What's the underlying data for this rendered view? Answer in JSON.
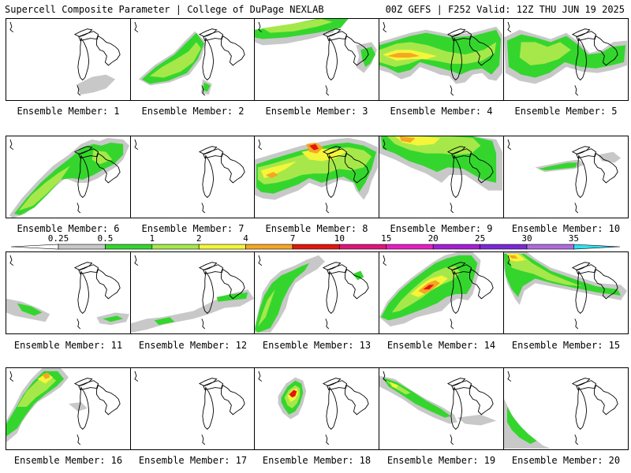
{
  "header": {
    "left_title": "Supercell Composite Parameter | College of DuPage NEXLAB",
    "right_title": "00Z GEFS | F252 Valid: 12Z THU JUN 19 2025"
  },
  "member_label_prefix": "Ensemble Member: ",
  "members": [
    {
      "id": "1",
      "label": "Ensemble Member: 1"
    },
    {
      "id": "2",
      "label": "Ensemble Member: 2"
    },
    {
      "id": "3",
      "label": "Ensemble Member: 3"
    },
    {
      "id": "4",
      "label": "Ensemble Member: 4"
    },
    {
      "id": "5",
      "label": "Ensemble Member: 5"
    },
    {
      "id": "6",
      "label": "Ensemble Member: 6"
    },
    {
      "id": "7",
      "label": "Ensemble Member: 7"
    },
    {
      "id": "8",
      "label": "Ensemble Member: 8"
    },
    {
      "id": "9",
      "label": "Ensemble Member: 9"
    },
    {
      "id": "10",
      "label": "Ensemble Member: 10"
    },
    {
      "id": "11",
      "label": "Ensemble Member: 11"
    },
    {
      "id": "12",
      "label": "Ensemble Member: 12"
    },
    {
      "id": "13",
      "label": "Ensemble Member: 13"
    },
    {
      "id": "14",
      "label": "Ensemble Member: 14"
    },
    {
      "id": "15",
      "label": "Ensemble Member: 15"
    },
    {
      "id": "16",
      "label": "Ensemble Member: 16"
    },
    {
      "id": "17",
      "label": "Ensemble Member: 17"
    },
    {
      "id": "18",
      "label": "Ensemble Member: 18"
    },
    {
      "id": "19",
      "label": "Ensemble Member: 19"
    },
    {
      "id": "20",
      "label": "Ensemble Member: 20"
    }
  ],
  "colorbar": {
    "ticks": [
      "0.25",
      "0.5",
      "1",
      "2",
      "4",
      "7",
      "10",
      "15",
      "20",
      "25",
      "30",
      "35"
    ],
    "colors": [
      "#c8c8c8",
      "#34d62e",
      "#a6e84a",
      "#f5f53a",
      "#f5a623",
      "#e3160e",
      "#e0157a",
      "#e91ec4",
      "#a81ed6",
      "#7a28d8",
      "#b06ae0",
      "#33e0f0"
    ]
  }
}
